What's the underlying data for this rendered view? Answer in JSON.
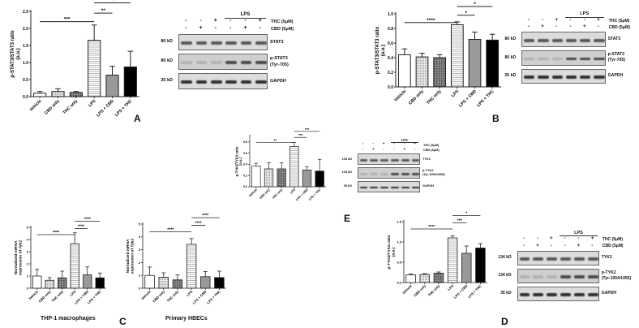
{
  "panels": {
    "A": {
      "letter": "A"
    },
    "B": {
      "letter": "B"
    },
    "C": {
      "letter": "C",
      "captions": [
        "THP-1 macrophages",
        "Primary HBECs"
      ]
    },
    "D": {
      "letter": "D"
    },
    "E": {
      "letter": "E"
    }
  },
  "categories": [
    "Vehicle",
    "CBD only",
    "THC only",
    "LPS",
    "LPS + CBD",
    "LPS + THC"
  ],
  "blots": {
    "stat3": {
      "lps_label": "LPS",
      "thc_label": "THC (5μM)",
      "cbd_label": "CBD (5μM)",
      "thc_signs": [
        "-",
        "-",
        "+",
        "-",
        "-",
        "+"
      ],
      "cbd_signs": [
        "-",
        "+",
        "-",
        "-",
        "+",
        "-"
      ],
      "rows": [
        {
          "mw": "80 kD",
          "label": "STAT3"
        },
        {
          "mw": "80 kD",
          "label": "p-STAT3",
          "label2": "(Tyr-705)"
        },
        {
          "mw": "35 kD",
          "label": "GAPDH"
        }
      ]
    },
    "tyk2": {
      "lps_label": "LPS",
      "thc_label": "THC (5μM)",
      "cbd_label": "CBD (5μM)",
      "thc_signs": [
        "-",
        "-",
        "+",
        "-",
        "-",
        "+"
      ],
      "cbd_signs": [
        "-",
        "+",
        "-",
        "-",
        "+",
        "-"
      ],
      "rows": [
        {
          "mw": "134 kD",
          "label": "TYK2"
        },
        {
          "mw": "134 kD",
          "label": "p-TYK2",
          "label2": "(Tyr-1054/1055)"
        },
        {
          "mw": "35 kD",
          "label": "GAPDH"
        }
      ]
    }
  },
  "chart_data": [
    {
      "id": "A",
      "type": "bar",
      "ylabel": "p-STAT3/STAT3 ratio (a.u.)",
      "categories": [
        "Vehicle",
        "CBD only",
        "THC only",
        "LPS",
        "LPS + CBD",
        "LPS + THC"
      ],
      "values": [
        0.1,
        0.15,
        0.12,
        1.65,
        0.63,
        0.87
      ],
      "errors": [
        0.05,
        0.08,
        0.03,
        0.45,
        0.26,
        0.46
      ],
      "ylim": [
        0,
        2.5
      ],
      "yticks": [
        0.0,
        0.5,
        1.0,
        1.5,
        2.0,
        2.5
      ],
      "significance": [
        {
          "from": 0,
          "to": 3,
          "label": "***"
        },
        {
          "from": 3,
          "to": 4,
          "label": "**"
        },
        {
          "from": 3,
          "to": 5,
          "label": "*"
        }
      ]
    },
    {
      "id": "B",
      "type": "bar",
      "ylabel": "p-STAT3/STAT3 ratio (a.u.)",
      "categories": [
        "Vehicle",
        "CBD only",
        "THC only",
        "LPS",
        "LPS + CBD",
        "LPS + THC"
      ],
      "values": [
        0.44,
        0.41,
        0.4,
        0.85,
        0.65,
        0.64
      ],
      "errors": [
        0.08,
        0.05,
        0.04,
        0.04,
        0.1,
        0.08
      ],
      "ylim": [
        0,
        1.0
      ],
      "yticks": [
        0.0,
        0.2,
        0.4,
        0.6,
        0.8,
        1.0
      ],
      "significance": [
        {
          "from": 0,
          "to": 3,
          "label": "****"
        },
        {
          "from": 3,
          "to": 4,
          "label": "*"
        },
        {
          "from": 3,
          "to": 5,
          "label": "*"
        }
      ]
    },
    {
      "id": "E",
      "type": "bar",
      "ylabel": "p-TYK2/TYK2 ratio (a.u.)",
      "categories": [
        "Vehicle",
        "CBD only",
        "THC only",
        "LPS",
        "LPS + CBD",
        "LPS + THC"
      ],
      "values": [
        0.37,
        0.32,
        0.32,
        0.72,
        0.3,
        0.28
      ],
      "errors": [
        0.05,
        0.11,
        0.11,
        0.07,
        0.06,
        0.21
      ],
      "ylim": [
        0,
        0.9
      ],
      "yticks": [
        0.0,
        0.2,
        0.4,
        0.6,
        0.8
      ],
      "significance": [
        {
          "from": 0,
          "to": 3,
          "label": "**"
        },
        {
          "from": 3,
          "to": 4,
          "label": "***"
        },
        {
          "from": 3,
          "to": 5,
          "label": "***"
        }
      ]
    },
    {
      "id": "C1",
      "type": "bar",
      "caption": "THP-1 macrophages",
      "ylabel": "Normalized mRNA expression of Tyk2",
      "categories": [
        "Vehicle",
        "CBD only",
        "THC only",
        "LPS",
        "LPS + CBD",
        "LPS + THC"
      ],
      "values": [
        1.0,
        0.65,
        0.85,
        3.65,
        1.1,
        0.85
      ],
      "errors": [
        0.55,
        0.22,
        0.55,
        0.9,
        0.65,
        0.4
      ],
      "ylim": [
        0,
        5
      ],
      "yticks": [
        0,
        1,
        2,
        3,
        4,
        5
      ],
      "significance": [
        {
          "from": 0,
          "to": 3,
          "label": "****"
        },
        {
          "from": 3,
          "to": 4,
          "label": "****"
        },
        {
          "from": 3,
          "to": 5,
          "label": "****"
        }
      ]
    },
    {
      "id": "C2",
      "type": "bar",
      "caption": "Primary HBECs",
      "ylabel": "Normalized mRNA expression of Tyk2",
      "categories": [
        "Vehicle",
        "CBD only",
        "THC only",
        "LPS",
        "LPS + CBD",
        "LPS + THC"
      ],
      "values": [
        1.0,
        0.85,
        0.65,
        3.42,
        0.9,
        0.83
      ],
      "errors": [
        0.65,
        0.35,
        0.38,
        0.45,
        0.4,
        0.5
      ],
      "ylim": [
        0,
        5
      ],
      "yticks": [
        0,
        1,
        2,
        3,
        4,
        5
      ],
      "significance": [
        {
          "from": 0,
          "to": 3,
          "label": "****"
        },
        {
          "from": 3,
          "to": 4,
          "label": "****"
        },
        {
          "from": 3,
          "to": 5,
          "label": "****"
        }
      ]
    },
    {
      "id": "D",
      "type": "bar",
      "ylabel": "p-TYK2/TYK2 ratio (a.u.)",
      "categories": [
        "Vehicle",
        "CBD only",
        "THC only",
        "LPS",
        "LPS + CBD",
        "LPS + THC"
      ],
      "values": [
        0.19,
        0.2,
        0.23,
        1.1,
        0.72,
        0.85
      ],
      "errors": [
        0.02,
        0.02,
        0.03,
        0.05,
        0.18,
        0.11
      ],
      "ylim": [
        0,
        1.5
      ],
      "yticks": [
        0.0,
        0.5,
        1.0,
        1.5
      ],
      "significance": [
        {
          "from": 0,
          "to": 3,
          "label": "****"
        },
        {
          "from": 3,
          "to": 4,
          "label": "***"
        },
        {
          "from": 3,
          "to": 5,
          "label": "*"
        }
      ]
    }
  ]
}
